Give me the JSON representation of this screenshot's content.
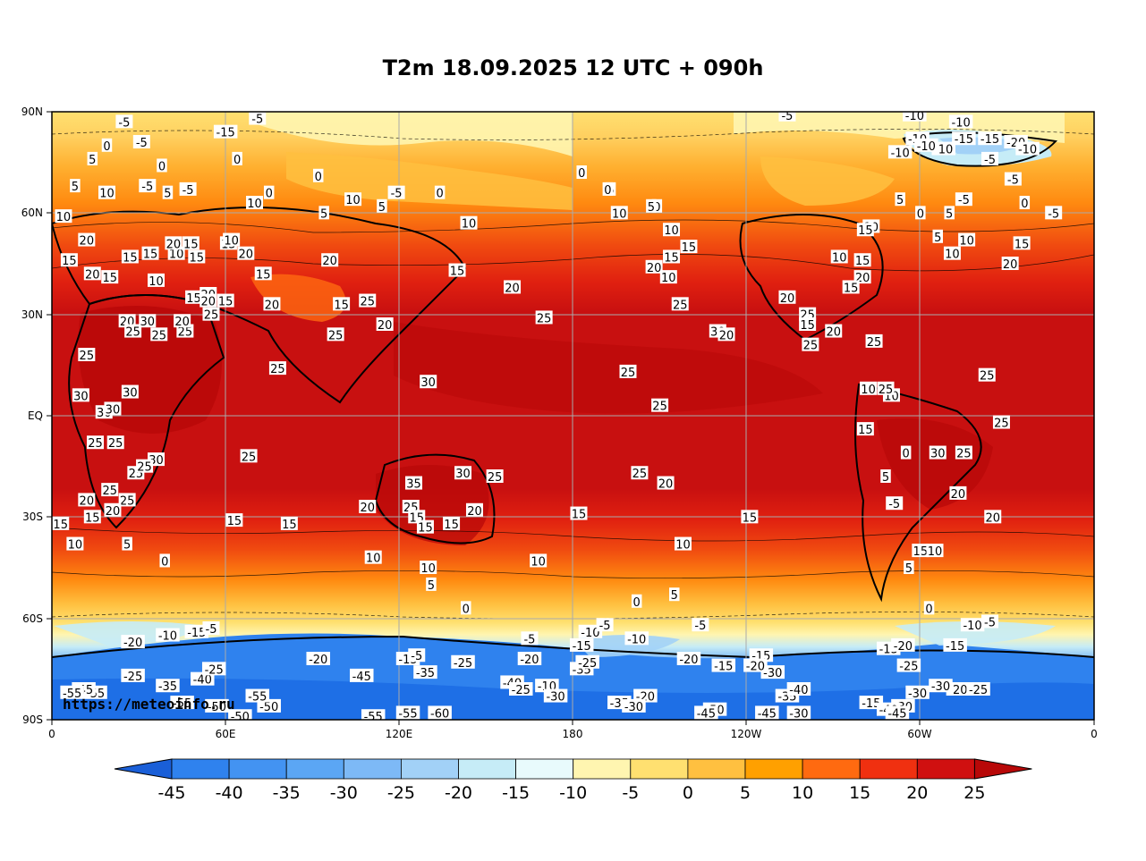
{
  "map": {
    "title": "T2m 18.09.2025 12 UTC + 090h",
    "credit": "https://meteoinfo.ru",
    "lat_labels": [
      "90N",
      "60N",
      "30N",
      "EQ",
      "30S",
      "60S",
      "90S"
    ],
    "lon_labels": [
      "0",
      "60E",
      "120E",
      "180",
      "120W",
      "60W",
      "0"
    ]
  },
  "colorbar": {
    "labels": [
      "-45",
      "-40",
      "-35",
      "-30",
      "-25",
      "-20",
      "-15",
      "-10",
      "-5",
      "0",
      "5",
      "10",
      "15",
      "20",
      "25"
    ],
    "colors": [
      "#1e6fe6",
      "#2f82ee",
      "#4393f2",
      "#5ba6f4",
      "#7db9f6",
      "#a2d1f7",
      "#c6ecf7",
      "#e8fafc",
      "#fff5b0",
      "#ffe070",
      "#ffc040",
      "#ffa000",
      "#ff6a10",
      "#f03010",
      "#d01010"
    ],
    "under_color": "#1a5fd8",
    "over_color": "#b80808"
  },
  "contour_labels": [
    {
      "t": "-5",
      "lon": 25,
      "lat": 87
    },
    {
      "t": "-5",
      "lon": 71,
      "lat": 88
    },
    {
      "t": "-5",
      "lon": -106,
      "lat": 89
    },
    {
      "t": "-10",
      "lon": -62,
      "lat": 89
    },
    {
      "t": "-10",
      "lon": -46,
      "lat": 87
    },
    {
      "t": "0",
      "lon": 19,
      "lat": 80
    },
    {
      "t": "-5",
      "lon": 31,
      "lat": 81
    },
    {
      "t": "5",
      "lon": 14,
      "lat": 76
    },
    {
      "t": "0",
      "lon": 38,
      "lat": 74
    },
    {
      "t": "-5",
      "lon": 33,
      "lat": 68
    },
    {
      "t": "5",
      "lon": 8,
      "lat": 68
    },
    {
      "t": "10",
      "lon": 19,
      "lat": 66
    },
    {
      "t": "10",
      "lon": 4,
      "lat": 59
    },
    {
      "t": "5",
      "lon": 40,
      "lat": 66
    },
    {
      "t": "-5",
      "lon": 47,
      "lat": 67
    },
    {
      "t": "0",
      "lon": 64,
      "lat": 76
    },
    {
      "t": "10",
      "lon": 70,
      "lat": 63
    },
    {
      "t": "0",
      "lon": 75,
      "lat": 66
    },
    {
      "t": "0",
      "lon": 92,
      "lat": 71
    },
    {
      "t": "5",
      "lon": 94,
      "lat": 60
    },
    {
      "t": "-15",
      "lon": 60,
      "lat": 84
    },
    {
      "t": "20",
      "lon": 12,
      "lat": 52
    },
    {
      "t": "15",
      "lon": 6,
      "lat": 46
    },
    {
      "t": "20",
      "lon": 14,
      "lat": 42
    },
    {
      "t": "15",
      "lon": 20,
      "lat": 41
    },
    {
      "t": "15",
      "lon": 27,
      "lat": 47
    },
    {
      "t": "15",
      "lon": 49,
      "lat": 35
    },
    {
      "t": "20",
      "lon": 54,
      "lat": 36
    },
    {
      "t": "20",
      "lon": 54,
      "lat": 34
    },
    {
      "t": "10",
      "lon": 36,
      "lat": 40
    },
    {
      "t": "15",
      "lon": 34,
      "lat": 48
    },
    {
      "t": "10",
      "lon": 43,
      "lat": 48
    },
    {
      "t": "15",
      "lon": 50,
      "lat": 47
    },
    {
      "t": "20",
      "lon": 42,
      "lat": 51
    },
    {
      "t": "20",
      "lon": 26,
      "lat": 28
    },
    {
      "t": "25",
      "lon": 28,
      "lat": 25
    },
    {
      "t": "30",
      "lon": 33,
      "lat": 28
    },
    {
      "t": "25",
      "lon": 12,
      "lat": 18
    },
    {
      "t": "30",
      "lon": 10,
      "lat": 6
    },
    {
      "t": "30",
      "lon": 18,
      "lat": 1
    },
    {
      "t": "25",
      "lon": 15,
      "lat": -8
    },
    {
      "t": "25",
      "lon": 22,
      "lat": -8
    },
    {
      "t": "25",
      "lon": 29,
      "lat": -17
    },
    {
      "t": "30",
      "lon": 36,
      "lat": -13
    },
    {
      "t": "25",
      "lon": 20,
      "lat": -22
    },
    {
      "t": "25",
      "lon": 26,
      "lat": -25
    },
    {
      "t": "20",
      "lon": 12,
      "lat": -25
    },
    {
      "t": "15",
      "lon": 14,
      "lat": -30
    },
    {
      "t": "20",
      "lon": 21,
      "lat": -28
    },
    {
      "t": "15",
      "lon": 3,
      "lat": -32
    },
    {
      "t": "10",
      "lon": 8,
      "lat": -38
    },
    {
      "t": "5",
      "lon": 26,
      "lat": -38
    },
    {
      "t": "0",
      "lon": 39,
      "lat": -43
    },
    {
      "t": "25",
      "lon": 37,
      "lat": 24
    },
    {
      "t": "30",
      "lon": 21,
      "lat": 2
    },
    {
      "t": "25",
      "lon": 32,
      "lat": -15
    },
    {
      "t": "30",
      "lon": 27,
      "lat": 7
    },
    {
      "t": "25",
      "lon": 55,
      "lat": 30
    },
    {
      "t": "15",
      "lon": 60,
      "lat": 34
    },
    {
      "t": "25",
      "lon": 46,
      "lat": 25
    },
    {
      "t": "20",
      "lon": 45,
      "lat": 28
    },
    {
      "t": "15",
      "lon": 61,
      "lat": 51
    },
    {
      "t": "15",
      "lon": 48,
      "lat": 51
    },
    {
      "t": "10",
      "lon": 62,
      "lat": 52
    },
    {
      "t": "20",
      "lon": 67,
      "lat": 48
    },
    {
      "t": "15",
      "lon": 73,
      "lat": 42
    },
    {
      "t": "20",
      "lon": 76,
      "lat": 33
    },
    {
      "t": "25",
      "lon": 78,
      "lat": 14
    },
    {
      "t": "20",
      "lon": 96,
      "lat": 46
    },
    {
      "t": "5",
      "lon": 114,
      "lat": 62
    },
    {
      "t": "10",
      "lon": 104,
      "lat": 64
    },
    {
      "t": "-5",
      "lon": 119,
      "lat": 66
    },
    {
      "t": "0",
      "lon": 134,
      "lat": 66
    },
    {
      "t": "25",
      "lon": 109,
      "lat": 34
    },
    {
      "t": "25",
      "lon": 98,
      "lat": 24
    },
    {
      "t": "15",
      "lon": 100,
      "lat": 33
    },
    {
      "t": "20",
      "lon": 115,
      "lat": 27
    },
    {
      "t": "30",
      "lon": 130,
      "lat": 10
    },
    {
      "t": "15",
      "lon": 140,
      "lat": 43
    },
    {
      "t": "10",
      "lon": 144,
      "lat": 57
    },
    {
      "t": "20",
      "lon": 159,
      "lat": 38
    },
    {
      "t": "25",
      "lon": 170,
      "lat": 29
    },
    {
      "t": "0",
      "lon": -177,
      "lat": 72
    },
    {
      "t": "5",
      "lon": -167,
      "lat": 67
    },
    {
      "t": "0",
      "lon": -168,
      "lat": 67
    },
    {
      "t": "10",
      "lon": -164,
      "lat": 60
    },
    {
      "t": "0",
      "lon": -151,
      "lat": 62
    },
    {
      "t": "5",
      "lon": -153,
      "lat": 62
    },
    {
      "t": "10",
      "lon": -146,
      "lat": 55
    },
    {
      "t": "15",
      "lon": -146,
      "lat": 47
    },
    {
      "t": "10",
      "lon": -147,
      "lat": 41
    },
    {
      "t": "15",
      "lon": -140,
      "lat": 50
    },
    {
      "t": "20",
      "lon": -152,
      "lat": 44
    },
    {
      "t": "25",
      "lon": -143,
      "lat": 33
    },
    {
      "t": "30",
      "lon": -130,
      "lat": 25
    },
    {
      "t": "20",
      "lon": -127,
      "lat": 24
    },
    {
      "t": "25",
      "lon": -161,
      "lat": 13
    },
    {
      "t": "25",
      "lon": -150,
      "lat": 3
    },
    {
      "t": "20",
      "lon": -148,
      "lat": -20
    },
    {
      "t": "25",
      "lon": -157,
      "lat": -17
    },
    {
      "t": "15",
      "lon": -119,
      "lat": -30
    },
    {
      "t": "15",
      "lon": -178,
      "lat": -29
    },
    {
      "t": "10",
      "lon": -142,
      "lat": -38
    },
    {
      "t": "5",
      "lon": -145,
      "lat": -53
    },
    {
      "t": "0",
      "lon": -158,
      "lat": -55
    },
    {
      "t": "-10",
      "lon": -174,
      "lat": -64
    },
    {
      "t": "-15",
      "lon": -177,
      "lat": -68
    },
    {
      "t": "-5",
      "lon": -169,
      "lat": -62
    },
    {
      "t": "-20",
      "lon": -155,
      "lat": -83
    },
    {
      "t": "-20",
      "lon": -140,
      "lat": -72
    },
    {
      "t": "30",
      "lon": 142,
      "lat": -17
    },
    {
      "t": "35",
      "lon": 125,
      "lat": -20
    },
    {
      "t": "25",
      "lon": 124,
      "lat": -27
    },
    {
      "t": "20",
      "lon": 109,
      "lat": -27
    },
    {
      "t": "15",
      "lon": 138,
      "lat": -32
    },
    {
      "t": "25",
      "lon": 153,
      "lat": -18
    },
    {
      "t": "20",
      "lon": 146,
      "lat": -28
    },
    {
      "t": "15",
      "lon": 126,
      "lat": -30
    },
    {
      "t": "10",
      "lon": 130,
      "lat": -45
    },
    {
      "t": "10",
      "lon": 168,
      "lat": -43
    },
    {
      "t": "15",
      "lon": 129,
      "lat": -33
    },
    {
      "t": "10",
      "lon": 111,
      "lat": -42
    },
    {
      "t": "15",
      "lon": 82,
      "lat": -32
    },
    {
      "t": "15",
      "lon": 63,
      "lat": -31
    },
    {
      "t": "25",
      "lon": 68,
      "lat": -12
    },
    {
      "t": "10",
      "lon": -49,
      "lat": 48
    },
    {
      "t": "5",
      "lon": -54,
      "lat": 53
    },
    {
      "t": "0",
      "lon": -60,
      "lat": 60
    },
    {
      "t": "10",
      "lon": -77,
      "lat": 56
    },
    {
      "t": "15",
      "lon": -79,
      "lat": 55
    },
    {
      "t": "10",
      "lon": -88,
      "lat": 47
    },
    {
      "t": "15",
      "lon": -80,
      "lat": 46
    },
    {
      "t": "20",
      "lon": -80,
      "lat": 41
    },
    {
      "t": "15",
      "lon": -84,
      "lat": 38
    },
    {
      "t": "20",
      "lon": -106,
      "lat": 35
    },
    {
      "t": "25",
      "lon": -99,
      "lat": 30
    },
    {
      "t": "20",
      "lon": -90,
      "lat": 25
    },
    {
      "t": "25",
      "lon": -76,
      "lat": 22
    },
    {
      "t": "15",
      "lon": -99,
      "lat": 27
    },
    {
      "t": "25",
      "lon": -98,
      "lat": 21
    },
    {
      "t": "10",
      "lon": -78,
      "lat": 8
    },
    {
      "t": "10",
      "lon": -70,
      "lat": 6
    },
    {
      "t": "25",
      "lon": -72,
      "lat": 8
    },
    {
      "t": "15",
      "lon": -79,
      "lat": -4
    },
    {
      "t": "0",
      "lon": -65,
      "lat": -11
    },
    {
      "t": "5",
      "lon": -72,
      "lat": -18
    },
    {
      "t": "30",
      "lon": -54,
      "lat": -11
    },
    {
      "t": "25",
      "lon": -45,
      "lat": -11
    },
    {
      "t": "20",
      "lon": -47,
      "lat": -23
    },
    {
      "t": "-5",
      "lon": -69,
      "lat": -26
    },
    {
      "t": "20",
      "lon": -35,
      "lat": -30
    },
    {
      "t": "15",
      "lon": -60,
      "lat": -40
    },
    {
      "t": "10",
      "lon": -55,
      "lat": -40
    },
    {
      "t": "5",
      "lon": -64,
      "lat": -45
    },
    {
      "t": "0",
      "lon": -57,
      "lat": -57
    },
    {
      "t": "25",
      "lon": -37,
      "lat": 12
    },
    {
      "t": "25",
      "lon": -32,
      "lat": -2
    },
    {
      "t": "15",
      "lon": -25,
      "lat": 51
    },
    {
      "t": "20",
      "lon": -29,
      "lat": 45
    },
    {
      "t": "10",
      "lon": -44,
      "lat": 52
    },
    {
      "t": "-10",
      "lon": -42,
      "lat": -62
    },
    {
      "t": "-5",
      "lon": -36,
      "lat": -61
    },
    {
      "t": "-15",
      "lon": -48,
      "lat": -68
    },
    {
      "t": "-15",
      "lon": -71,
      "lat": -69
    },
    {
      "t": "-20",
      "lon": -66,
      "lat": -68
    },
    {
      "t": "-30",
      "lon": -61,
      "lat": -82
    },
    {
      "t": "-20",
      "lon": -47,
      "lat": -81
    },
    {
      "t": "-25",
      "lon": -40,
      "lat": -81
    },
    {
      "t": "-30",
      "lon": -53,
      "lat": -80
    },
    {
      "t": "-25",
      "lon": -64,
      "lat": -74
    },
    {
      "t": "-15",
      "lon": -77,
      "lat": -85
    },
    {
      "t": "-30",
      "lon": -66,
      "lat": -86
    },
    {
      "t": "-40",
      "lon": -71,
      "lat": -87
    },
    {
      "t": "-45",
      "lon": -68,
      "lat": -88
    },
    {
      "t": "-45",
      "lon": -113,
      "lat": -88
    },
    {
      "t": "-50",
      "lon": -131,
      "lat": -87
    },
    {
      "t": "-30",
      "lon": -102,
      "lat": -88
    },
    {
      "t": "-35",
      "lon": -106,
      "lat": -83
    },
    {
      "t": "-30",
      "lon": -111,
      "lat": -76
    },
    {
      "t": "-40",
      "lon": -102,
      "lat": -81
    },
    {
      "t": "-15",
      "lon": -115,
      "lat": -71
    },
    {
      "t": "-20",
      "lon": -117,
      "lat": -74
    },
    {
      "t": "-5",
      "lon": -136,
      "lat": -62
    },
    {
      "t": "-10",
      "lon": -158,
      "lat": -66
    },
    {
      "t": "-15",
      "lon": -128,
      "lat": -74
    },
    {
      "t": "-35",
      "lon": -164,
      "lat": -85
    },
    {
      "t": "-30",
      "lon": -159,
      "lat": -86
    },
    {
      "t": "-35",
      "lon": -177,
      "lat": -75
    },
    {
      "t": "-25",
      "lon": -175,
      "lat": -73
    },
    {
      "t": "-45",
      "lon": -134,
      "lat": -88
    },
    {
      "t": "-50",
      "lon": 75,
      "lat": -86
    },
    {
      "t": "-55",
      "lon": 123,
      "lat": -88
    },
    {
      "t": "-60",
      "lon": 134,
      "lat": -88
    },
    {
      "t": "-55",
      "lon": 15,
      "lat": -82
    },
    {
      "t": "-55",
      "lon": 71,
      "lat": -83
    },
    {
      "t": "-55",
      "lon": 111,
      "lat": -89
    },
    {
      "t": "-50",
      "lon": 65,
      "lat": -89
    },
    {
      "t": "-45",
      "lon": 107,
      "lat": -77
    },
    {
      "t": "-40",
      "lon": 52,
      "lat": -78
    },
    {
      "t": "-50",
      "lon": 57,
      "lat": -86
    },
    {
      "t": "-35",
      "lon": 40,
      "lat": -80
    },
    {
      "t": "-35",
      "lon": 129,
      "lat": -76
    },
    {
      "t": "-25",
      "lon": 142,
      "lat": -73
    },
    {
      "t": "-20",
      "lon": 92,
      "lat": -72
    },
    {
      "t": "-25",
      "lon": 56,
      "lat": -75
    },
    {
      "t": "-20",
      "lon": 28,
      "lat": -67
    },
    {
      "t": "-15",
      "lon": 50,
      "lat": -64
    },
    {
      "t": "-10",
      "lon": 40,
      "lat": -65
    },
    {
      "t": "-5",
      "lon": 55,
      "lat": -63
    },
    {
      "t": "-45",
      "lon": 11,
      "lat": -81
    },
    {
      "t": "-55",
      "lon": 7,
      "lat": -82
    },
    {
      "t": "-25",
      "lon": 28,
      "lat": -77
    },
    {
      "t": "-55",
      "lon": 45,
      "lat": -85
    },
    {
      "t": "-15",
      "lon": 123,
      "lat": -72
    },
    {
      "t": "-5",
      "lon": 126,
      "lat": -71
    },
    {
      "t": "-10",
      "lon": 171,
      "lat": -80
    },
    {
      "t": "-30",
      "lon": 174,
      "lat": -83
    },
    {
      "t": "-20",
      "lon": 165,
      "lat": -72
    },
    {
      "t": "-40",
      "lon": 159,
      "lat": -79
    },
    {
      "t": "-25",
      "lon": 162,
      "lat": -81
    },
    {
      "t": "-5",
      "lon": 165,
      "lat": -66
    },
    {
      "t": "0",
      "lon": 143,
      "lat": -57
    },
    {
      "t": "5",
      "lon": 131,
      "lat": -50
    },
    {
      "t": "-10",
      "lon": -67,
      "lat": 78
    },
    {
      "t": "-15",
      "lon": -45,
      "lat": 82
    },
    {
      "t": "-10",
      "lon": -61,
      "lat": 82
    },
    {
      "t": "-10",
      "lon": -52,
      "lat": 79
    },
    {
      "t": "-10",
      "lon": -58,
      "lat": 80
    },
    {
      "t": "-15",
      "lon": -36,
      "lat": 82
    },
    {
      "t": "-20",
      "lon": -27,
      "lat": 81
    },
    {
      "t": "-10",
      "lon": -23,
      "lat": 79
    },
    {
      "t": "-5",
      "lon": -36,
      "lat": 76
    },
    {
      "t": "-5",
      "lon": -28,
      "lat": 70
    },
    {
      "t": "5",
      "lon": -67,
      "lat": 64
    },
    {
      "t": "-5",
      "lon": -45,
      "lat": 64
    },
    {
      "t": "5",
      "lon": -50,
      "lat": 60
    },
    {
      "t": "-5",
      "lon": -14,
      "lat": 60
    },
    {
      "t": "0",
      "lon": -24,
      "lat": 63
    }
  ]
}
